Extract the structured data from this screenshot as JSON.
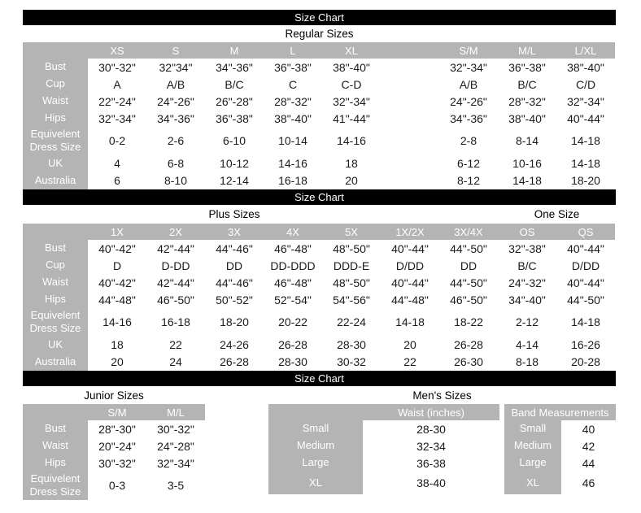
{
  "colors": {
    "bar_background": "#000000",
    "bar_text": "#ffffff",
    "header_background": "#b4b4b4",
    "header_text": "#ffffff",
    "cell_text": "#1a1a1a",
    "page_background": "#ffffff"
  },
  "section1": {
    "bar_title": "Size Chart",
    "title": "Regular Sizes",
    "table": {
      "columns": [
        "XS",
        "S",
        "M",
        "L",
        "XL",
        "",
        "S/M",
        "M/L",
        "L/XL"
      ],
      "rows": [
        {
          "label": "Bust",
          "values": [
            "30\"-32\"",
            "32\"34\"",
            "34\"-36\"",
            "36\"-38\"",
            "38\"-40\"",
            "",
            "32\"-34\"",
            "36\"-38\"",
            "38\"-40\""
          ]
        },
        {
          "label": "Cup",
          "values": [
            "A",
            "A/B",
            "B/C",
            "C",
            "C-D",
            "",
            "A/B",
            "B/C",
            "C/D"
          ]
        },
        {
          "label": "Waist",
          "values": [
            "22\"-24\"",
            "24\"-26\"",
            "26\"-28\"",
            "28\"-32\"",
            "32\"-34\"",
            "",
            "24\"-26\"",
            "28\"-32\"",
            "32\"-34\""
          ]
        },
        {
          "label": "Hips",
          "values": [
            "32\"-34\"",
            "34\"-36\"",
            "36\"-38\"",
            "38\"-40\"",
            "41\"-44\"",
            "",
            "34\"-36\"",
            "38\"-40\"",
            "40\"-44\""
          ]
        },
        {
          "label": "Equivelent Dress Size",
          "values": [
            "0-2",
            "2-6",
            "6-10",
            "10-14",
            "14-16",
            "",
            "2-8",
            "8-14",
            "14-18"
          ]
        },
        {
          "label": "UK",
          "values": [
            "4",
            "6-8",
            "10-12",
            "14-16",
            "18",
            "",
            "6-12",
            "10-16",
            "14-18"
          ]
        },
        {
          "label": "Australia",
          "values": [
            "6",
            "8-10",
            "12-14",
            "16-18",
            "20",
            "",
            "8-12",
            "14-18",
            "18-20"
          ]
        }
      ]
    }
  },
  "section2": {
    "bar_title": "Size Chart",
    "title_left": "Plus Sizes",
    "title_right": "One Size",
    "table": {
      "columns": [
        "1X",
        "2X",
        "3X",
        "4X",
        "5X",
        "1X/2X",
        "3X/4X",
        "OS",
        "QS"
      ],
      "rows": [
        {
          "label": "Bust",
          "values": [
            "40\"-42\"",
            "42\"-44\"",
            "44\"-46\"",
            "46\"-48\"",
            "48\"-50\"",
            "40\"-44\"",
            "44\"-50\"",
            "32\"-38\"",
            "40\"-44\""
          ]
        },
        {
          "label": "Cup",
          "values": [
            "D",
            "D-DD",
            "DD",
            "DD-DDD",
            "DDD-E",
            "D/DD",
            "DD",
            "B/C",
            "D/DD"
          ]
        },
        {
          "label": "Waist",
          "values": [
            "40\"-42\"",
            "42\"-44\"",
            "44\"-46\"",
            "46\"-48\"",
            "48\"-50\"",
            "40\"-44\"",
            "44\"-50\"",
            "24\"-32\"",
            "40\"-44\""
          ]
        },
        {
          "label": "Hips",
          "values": [
            "44\"-48\"",
            "46\"-50\"",
            "50\"-52\"",
            "52\"-54\"",
            "54\"-56\"",
            "44\"-48\"",
            "46\"-50\"",
            "34\"-40\"",
            "44\"-50\""
          ]
        },
        {
          "label": "Equivelent Dress Size",
          "values": [
            "14-16",
            "16-18",
            "18-20",
            "20-22",
            "22-24",
            "14-18",
            "18-22",
            "2-12",
            "14-18"
          ]
        },
        {
          "label": "UK",
          "values": [
            "18",
            "22",
            "24-26",
            "26-28",
            "28-30",
            "20",
            "26-28",
            "4-14",
            "16-26"
          ]
        },
        {
          "label": "Australia",
          "values": [
            "20",
            "24",
            "26-28",
            "28-30",
            "30-32",
            "22",
            "26-30",
            "8-18",
            "20-28"
          ]
        }
      ]
    }
  },
  "section3": {
    "bar_title": "Size Chart",
    "junior": {
      "title": "Junior Sizes",
      "table": {
        "columns": [
          "S/M",
          "M/L"
        ],
        "rows": [
          {
            "label": "Bust",
            "values": [
              "28\"-30\"",
              "30\"-32\""
            ]
          },
          {
            "label": "Waist",
            "values": [
              "20\"-24\"",
              "24\"-28\""
            ]
          },
          {
            "label": "Hips",
            "values": [
              "30\"-32\"",
              "32\"-34\""
            ]
          },
          {
            "label": "Equivelent Dress Size",
            "values": [
              "0-3",
              "3-5"
            ]
          }
        ]
      }
    },
    "mens": {
      "title": "Men's Sizes",
      "waist_table": {
        "columns": [
          "Waist (inches)"
        ],
        "rows": [
          {
            "label": "Small",
            "values": [
              "28-30"
            ]
          },
          {
            "label": "Medium",
            "values": [
              "32-34"
            ]
          },
          {
            "label": "Large",
            "values": [
              "36-38"
            ]
          },
          {
            "label": "XL",
            "values": [
              "38-40"
            ]
          }
        ]
      },
      "band_table": {
        "columns": [
          "Band Measurements"
        ],
        "rows": [
          {
            "label": "Small",
            "values": [
              "40"
            ]
          },
          {
            "label": "Medium",
            "values": [
              "42"
            ]
          },
          {
            "label": "Large",
            "values": [
              "44"
            ]
          },
          {
            "label": "XL",
            "values": [
              "46"
            ]
          }
        ]
      }
    }
  }
}
